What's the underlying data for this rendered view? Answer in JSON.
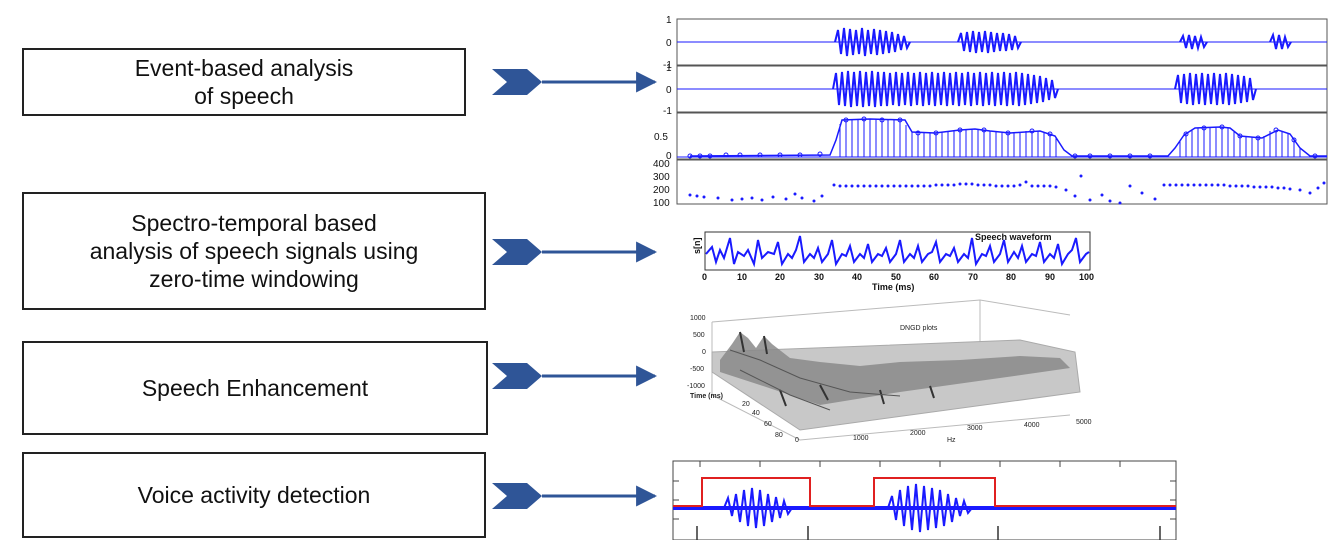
{
  "rows": [
    {
      "label": "Event-based analysis\nof speech"
    },
    {
      "label": "Spectro-temporal based\nanalysis of speech signals using\nzero-time windowing"
    },
    {
      "label": "Speech Enhancement"
    },
    {
      "label": "Voice activity detection"
    }
  ],
  "panel1": {
    "ticks_a": [
      "1",
      "0",
      "-1"
    ],
    "ticks_b": [
      "1",
      "0",
      "-1"
    ],
    "ticks_c": [
      "0.5",
      "0"
    ],
    "ticks_d": [
      "400",
      "300",
      "200",
      "100"
    ]
  },
  "panel2": {
    "ylabel": "s[n]",
    "legend": "Speech waveform",
    "xlabel": "Time (ms)",
    "xticks": [
      "0",
      "10",
      "20",
      "30",
      "40",
      "50",
      "60",
      "70",
      "80",
      "90",
      "100"
    ]
  },
  "panel3": {
    "title": "DNGD plots",
    "zticks": [
      "1000",
      "500",
      "0",
      "-500",
      "-1000"
    ],
    "time_label": "Time (ms)",
    "time_ticks": [
      "20",
      "40",
      "60",
      "80"
    ],
    "freq_ticks": [
      "0",
      "1000",
      "2000",
      "3000",
      "4000",
      "5000"
    ],
    "freq_label": "Hz"
  },
  "colors": {
    "arrow": "#2f5597",
    "signal": "#1a1aff",
    "vad": "#e02020"
  }
}
